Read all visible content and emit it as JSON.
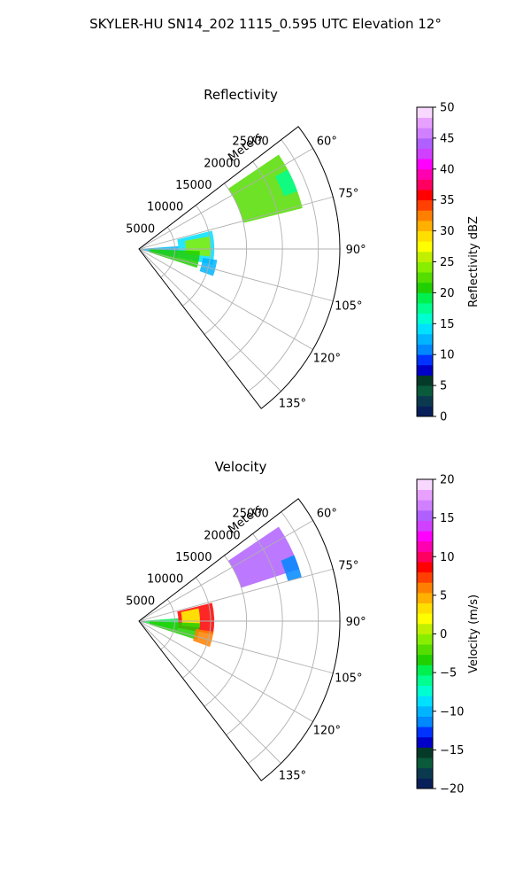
{
  "figure": {
    "suptitle": "SKYLER-HU  SN14_202  1115_0.595 UTC Elevation 12°"
  },
  "chart_data": [
    {
      "type": "polar-ppi",
      "title": "Reflectivity",
      "r_label": "Meters",
      "r_ticks": [
        5000,
        10000,
        15000,
        20000,
        25000
      ],
      "r_tick_labels": [
        "5000",
        "10000",
        "15000",
        "20000",
        "25000"
      ],
      "r_max": 28000,
      "theta_range_deg": [
        52.5,
        142.5
      ],
      "theta_ticks": [
        60,
        75,
        90,
        105,
        120,
        135
      ],
      "theta_tick_labels": [
        "60°",
        "75°",
        "90°",
        "105°",
        "120°",
        "135°"
      ],
      "grid": true,
      "colorbar": {
        "label": "Reflectivity dBZ",
        "vmin": 0,
        "vmax": 50,
        "ticks": [
          0,
          5,
          10,
          15,
          20,
          25,
          30,
          35,
          40,
          45,
          50
        ],
        "tick_labels": [
          "0",
          "5",
          "10",
          "15",
          "20",
          "25",
          "30",
          "35",
          "40",
          "45",
          "50"
        ],
        "colors": [
          "#08205a",
          "#0b3a4e",
          "#0a5a3c",
          "#063a28",
          "#0000c8",
          "#0033ff",
          "#0088ff",
          "#00b4ff",
          "#00e0ff",
          "#00ffd0",
          "#00ff90",
          "#00f050",
          "#20d000",
          "#55dd00",
          "#88ee00",
          "#c0f000",
          "#ffff00",
          "#ffdf00",
          "#ffb000",
          "#ff8000",
          "#ff4000",
          "#ff0000",
          "#ff0060",
          "#ff00b0",
          "#ff00ff",
          "#d040ff",
          "#b060ff",
          "#d080ff",
          "#e8a0ff",
          "#f8d8ff"
        ]
      },
      "echo_regions": [
        {
          "r": [
            15000,
            23500
          ],
          "theta": [
            56,
            76
          ],
          "value": 22
        },
        {
          "r": [
            21500,
            23500
          ],
          "theta": [
            62,
            70
          ],
          "value": 18
        },
        {
          "r": [
            5500,
            10500
          ],
          "theta": [
            76,
            102
          ],
          "value": 14
        },
        {
          "r": [
            6500,
            10000
          ],
          "theta": [
            80,
            96
          ],
          "value": 24
        },
        {
          "r": [
            0,
            5500
          ],
          "theta": [
            86,
            103
          ],
          "value": 12
        },
        {
          "r": [
            1500,
            8500
          ],
          "theta": [
            92,
            108
          ],
          "value": 20
        },
        {
          "r": [
            9000,
            11000
          ],
          "theta": [
            98,
            110
          ],
          "value": 13
        }
      ]
    },
    {
      "type": "polar-ppi",
      "title": "Velocity",
      "r_label": "Meters",
      "r_ticks": [
        5000,
        10000,
        15000,
        20000,
        25000
      ],
      "r_tick_labels": [
        "5000",
        "10000",
        "15000",
        "20000",
        "25000"
      ],
      "r_max": 28000,
      "theta_range_deg": [
        52.5,
        142.5
      ],
      "theta_ticks": [
        60,
        75,
        90,
        105,
        120,
        135
      ],
      "theta_tick_labels": [
        "60°",
        "75°",
        "90°",
        "105°",
        "120°",
        "135°"
      ],
      "grid": true,
      "colorbar": {
        "label": "Velocity (m/s)",
        "vmin": -20,
        "vmax": 20,
        "ticks": [
          -20,
          -15,
          -10,
          -5,
          0,
          5,
          10,
          15,
          20
        ],
        "tick_labels": [
          "−20",
          "−15",
          "−10",
          "−5",
          "0",
          "5",
          "10",
          "15",
          "20"
        ],
        "colors": [
          "#08205a",
          "#0b3a4e",
          "#0a5a3c",
          "#063a28",
          "#0000c8",
          "#0033ff",
          "#0088ff",
          "#00b4ff",
          "#00e0ff",
          "#00ffd0",
          "#00ff90",
          "#00f050",
          "#20d000",
          "#55dd00",
          "#88ee00",
          "#c0f000",
          "#ffff00",
          "#ffdf00",
          "#ffb000",
          "#ff8000",
          "#ff4000",
          "#ff0000",
          "#ff0060",
          "#ff00b0",
          "#ff00ff",
          "#d040ff",
          "#b060ff",
          "#d080ff",
          "#e8a0ff",
          "#f8d8ff"
        ]
      },
      "echo_regions": [
        {
          "r": [
            15000,
            23500
          ],
          "theta": [
            56,
            72
          ],
          "value": 15
        },
        {
          "r": [
            21500,
            23500
          ],
          "theta": [
            67,
            75
          ],
          "value": -12
        },
        {
          "r": [
            5500,
            10500
          ],
          "theta": [
            76,
            100
          ],
          "value": 8
        },
        {
          "r": [
            6000,
            8500
          ],
          "theta": [
            78,
            96
          ],
          "value": 2
        },
        {
          "r": [
            0,
            5500
          ],
          "theta": [
            86,
            103
          ],
          "value": -5
        },
        {
          "r": [
            1500,
            8500
          ],
          "theta": [
            92,
            108
          ],
          "value": -3
        },
        {
          "r": [
            8000,
            10500
          ],
          "theta": [
            98,
            110
          ],
          "value": 6
        }
      ]
    }
  ]
}
